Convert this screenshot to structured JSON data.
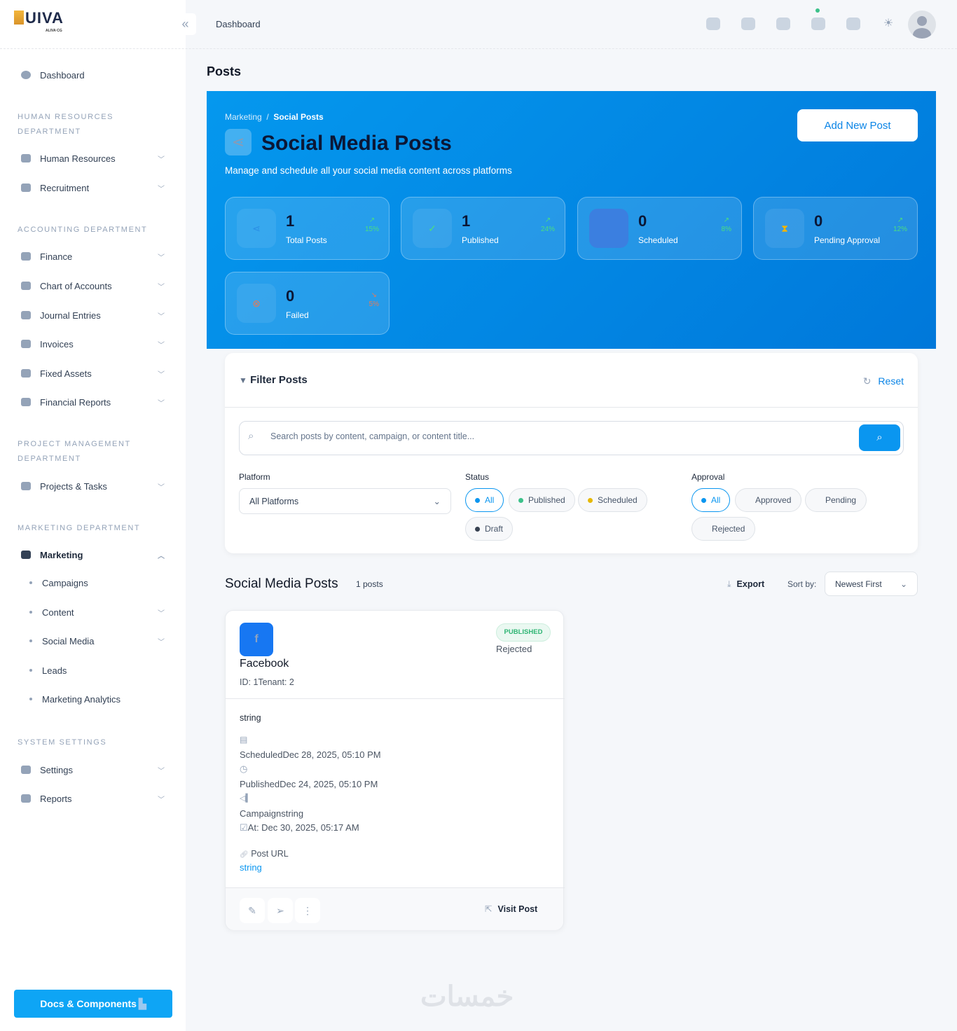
{
  "brand": {
    "logo_text": "UIVA",
    "logo_sub": "ALIVA·CG"
  },
  "header": {
    "title": "Dashboard",
    "icons": [
      "translate-icon",
      "chat-icon",
      "mail-icon",
      "calendar-icon",
      "apps-icon",
      "theme-icon"
    ],
    "online_color": "#3cc18a"
  },
  "sidebar": {
    "dashboard": "Dashboard",
    "sections": [
      {
        "title": "HUMAN RESOURCES DEPARTMENT",
        "items": [
          "Human Resources",
          "Recruitment"
        ]
      },
      {
        "title": "ACCOUNTING DEPARTMENT",
        "items": [
          "Finance",
          "Chart of Accounts",
          "Journal Entries",
          "Invoices",
          "Fixed Assets",
          "Financial Reports"
        ]
      },
      {
        "title": "PROJECT MANAGEMENT DEPARTMENT",
        "items": [
          "Projects & Tasks"
        ]
      },
      {
        "title": "MARKETING DEPARTMENT",
        "items": [
          "Marketing"
        ]
      },
      {
        "title": "SYSTEM SETTINGS",
        "items": [
          "Settings",
          "Reports"
        ]
      }
    ],
    "marketing_sub": [
      "Campaigns",
      "Content",
      "Social Media",
      "Leads",
      "Marketing Analytics"
    ],
    "docs_button": "Docs & Components"
  },
  "page": {
    "title": "Posts"
  },
  "banner": {
    "breadcrumb": [
      "Marketing",
      "Social Posts"
    ],
    "title": "Social Media Posts",
    "subtitle": "Manage and schedule all your social media content across platforms",
    "add_button": "Add New Post",
    "stats": [
      {
        "value": "1",
        "label": "Total Posts",
        "trend": "15%",
        "trend_dir": "up"
      },
      {
        "value": "1",
        "label": "Published",
        "trend": "24%",
        "trend_dir": "up"
      },
      {
        "value": "0",
        "label": "Scheduled",
        "trend": "8%",
        "trend_dir": "up"
      },
      {
        "value": "0",
        "label": "Pending Approval",
        "trend": "12%",
        "trend_dir": "up"
      },
      {
        "value": "0",
        "label": "Failed",
        "trend": "5%",
        "trend_dir": "down"
      }
    ]
  },
  "filter": {
    "title": "Filter Posts",
    "reset": "Reset",
    "search_placeholder": "Search posts by content, campaign, or content title...",
    "search_value": "",
    "platform_label": "Platform",
    "platform_value": "All Platforms",
    "status_label": "Status",
    "status_options": [
      "All",
      "Published",
      "Scheduled",
      "Draft"
    ],
    "status_selected": "All",
    "approval_label": "Approval",
    "approval_options": [
      "All",
      "Approved",
      "Pending",
      "Rejected"
    ],
    "approval_selected": "All"
  },
  "list": {
    "title": "Social Media Posts",
    "count": "1 posts",
    "export": "Export",
    "sort_label": "Sort by:",
    "sort_value": "Newest First"
  },
  "post": {
    "platform": "Facebook",
    "meta": "ID: 1Tenant: 2",
    "status_badge": "PUBLISHED",
    "approval": "Rejected",
    "content": "string",
    "scheduled": "ScheduledDec 28, 2025, 05:10 PM",
    "published": "PublishedDec 24, 2025, 05:10 PM",
    "campaign": "Campaignstring",
    "created": "At: Dec 30, 2025, 05:17 AM",
    "url_label": "Post URL",
    "url_value": "string",
    "visit": "Visit Post"
  },
  "watermark": "خمسات"
}
